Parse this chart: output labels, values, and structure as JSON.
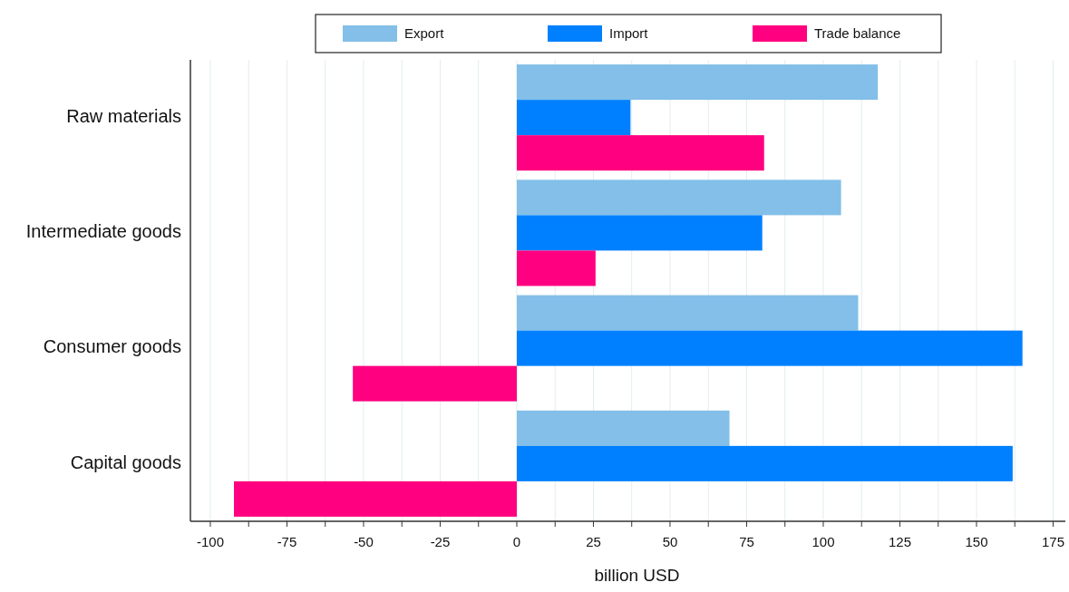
{
  "chart_data": {
    "type": "bar",
    "orientation": "horizontal",
    "xlabel": "billion USD",
    "categories": [
      "Raw materials",
      "Intermediate goods",
      "Consumer goods",
      "Capital goods"
    ],
    "series": [
      {
        "name": "Export",
        "color": "#83bfe8",
        "values": [
          117.8,
          105.8,
          111.4,
          69.4
        ]
      },
      {
        "name": "Import",
        "color": "#0080ff",
        "values": [
          37.1,
          80.1,
          165.0,
          161.8
        ]
      },
      {
        "name": "Trade balance",
        "color": "#ff0080",
        "values": [
          80.7,
          25.7,
          -53.5,
          -92.3
        ]
      }
    ],
    "xlim": [
      -106.5,
      179
    ],
    "xticks": [
      -100,
      {
        "value": -87.5,
        "label": null
      },
      -75,
      {
        "value": -62.5,
        "label": null
      },
      -50,
      {
        "value": -37.5,
        "label": null
      },
      -25,
      {
        "value": -12.5,
        "label": null
      },
      0,
      {
        "value": 12.5,
        "label": null
      },
      25,
      {
        "value": 37.5,
        "label": null
      },
      50,
      {
        "value": 62.5,
        "label": null
      },
      75,
      {
        "value": 87.5,
        "label": null
      },
      100,
      {
        "value": 112.5,
        "label": null
      },
      125,
      {
        "value": 137.5,
        "label": null
      },
      150,
      {
        "value": 162.5,
        "label": null
      },
      175
    ],
    "grid": "x",
    "legend": "top"
  }
}
